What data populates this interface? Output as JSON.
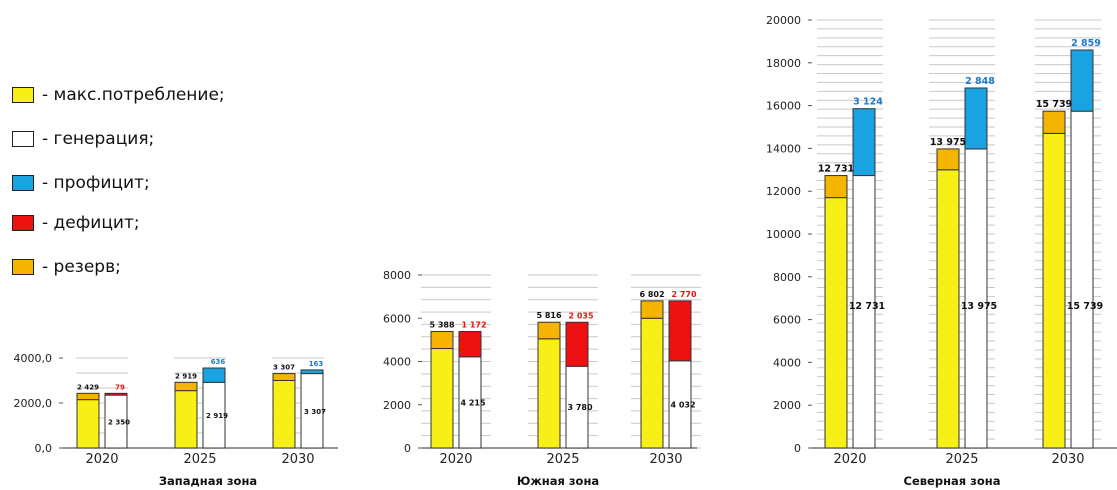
{
  "legend": [
    {
      "label": "- макс.потребление;",
      "color": "#f7ef16"
    },
    {
      "label": "- генерация;",
      "color": "#ffffff"
    },
    {
      "label": "- профицит;",
      "color": "#1aa3e0"
    },
    {
      "label": "- дефицит;",
      "color": "#ee1111"
    },
    {
      "label": "- резерв;",
      "color": "#f4b400"
    }
  ],
  "colors": {
    "consumption": "#f7ef16",
    "generation": "#ffffff",
    "surplus": "#1aa3e0",
    "deficit": "#ee1111",
    "reserve": "#f4b400",
    "deficit_label": "#ee1111",
    "surplus_label": "#1a7ad0"
  },
  "chart_data": [
    {
      "type": "bar",
      "title": "Западная зона",
      "categories": [
        "2020",
        "2025",
        "2030"
      ],
      "ylim": [
        0,
        4000
      ],
      "yticks": [
        "0,0",
        "2000,0",
        "4000,0"
      ],
      "ytick_values": [
        0,
        2000,
        4000
      ],
      "consumption": [
        2150,
        2550,
        3000
      ],
      "reserve": [
        279,
        369,
        307
      ],
      "consumption_plus_reserve_labels": [
        "2 429",
        "2 919",
        "3 307"
      ],
      "generation_values": [
        2350,
        2919,
        3307
      ],
      "generation_labels": [
        "2 350",
        "2 919",
        "3 307"
      ],
      "balance_values": [
        79,
        636,
        163
      ],
      "balance_labels": [
        "79",
        "636",
        "163"
      ],
      "balance_type": [
        "deficit",
        "surplus",
        "surplus"
      ]
    },
    {
      "type": "bar",
      "title": "Южная зона",
      "categories": [
        "2020",
        "2025",
        "2030"
      ],
      "ylim": [
        0,
        8000
      ],
      "yticks": [
        "0",
        "2000",
        "4000",
        "6000",
        "8000"
      ],
      "ytick_values": [
        0,
        2000,
        4000,
        6000,
        8000
      ],
      "consumption": [
        4600,
        5050,
        6000
      ],
      "reserve": [
        788,
        766,
        802
      ],
      "consumption_plus_reserve_labels": [
        "5 388",
        "5 816",
        "6 802"
      ],
      "generation_values": [
        4215,
        3780,
        4032
      ],
      "generation_labels": [
        "4 215",
        "3 780",
        "4 032"
      ],
      "balance_values": [
        1172,
        2035,
        2770
      ],
      "balance_labels": [
        "1 172",
        "2 035",
        "2 770"
      ],
      "balance_type": [
        "deficit",
        "deficit",
        "deficit"
      ]
    },
    {
      "type": "bar",
      "title": "Северная зона",
      "categories": [
        "2020",
        "2025",
        "2030"
      ],
      "ylim": [
        0,
        20000
      ],
      "yticks": [
        "0",
        "2000",
        "4000",
        "6000",
        "8000",
        "10000",
        "12000",
        "14000",
        "16000",
        "18000",
        "20000"
      ],
      "ytick_values": [
        0,
        2000,
        4000,
        6000,
        8000,
        10000,
        12000,
        14000,
        16000,
        18000,
        20000
      ],
      "consumption": [
        11700,
        13000,
        14700
      ],
      "reserve": [
        1031,
        975,
        1039
      ],
      "consumption_plus_reserve_labels": [
        "12 731",
        "13 975",
        "15 739"
      ],
      "generation_values": [
        12731,
        13975,
        15739
      ],
      "generation_labels": [
        "12 731",
        "13 975",
        "15 739"
      ],
      "balance_values": [
        3124,
        2848,
        2859
      ],
      "balance_labels": [
        "3 124",
        "2 848",
        "2 859"
      ],
      "balance_type": [
        "surplus",
        "surplus",
        "surplus"
      ]
    }
  ]
}
